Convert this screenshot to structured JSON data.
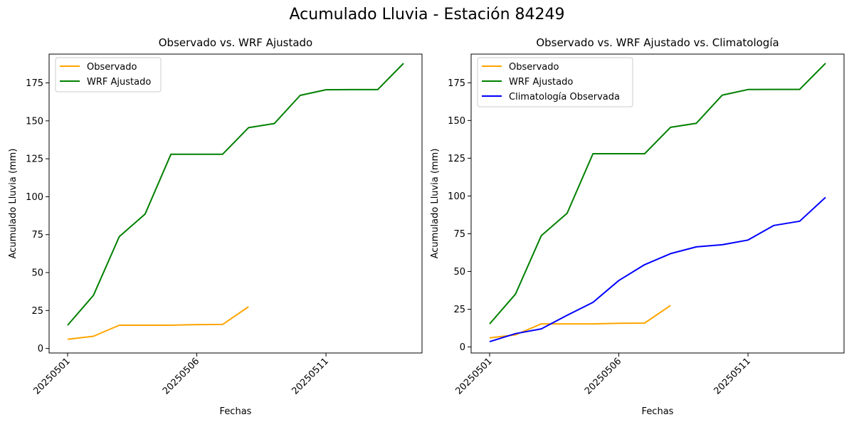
{
  "suptitle": "Acumulado Lluvia - Estación 84249",
  "chart_data": [
    {
      "type": "line",
      "title": "Observado vs. WRF Ajustado",
      "xlabel": "Fechas",
      "ylabel": "Acumulado Lluvia (mm)",
      "x": [
        "20250501",
        "20250502",
        "20250503",
        "20250504",
        "20250505",
        "20250506",
        "20250507",
        "20250508",
        "20250509",
        "20250510",
        "20250511",
        "20250512",
        "20250513",
        "20250514"
      ],
      "xticks": [
        "20250501",
        "20250506",
        "20250511"
      ],
      "yticks": [
        0,
        25,
        50,
        75,
        100,
        125,
        150,
        175
      ],
      "ylim": [
        -3,
        194
      ],
      "legend": "upper-left",
      "grid": false,
      "series": [
        {
          "name": "Observado",
          "color": "#ffa500",
          "values": [
            6,
            8,
            15.3,
            15.3,
            15.3,
            15.7,
            15.8,
            27.5,
            null,
            null,
            null,
            null,
            null,
            null
          ]
        },
        {
          "name": "WRF Ajustado",
          "color": "#008000",
          "values": [
            15.3,
            35,
            73.7,
            88.6,
            128,
            128,
            128,
            145.5,
            148.2,
            166.8,
            170.5,
            170.6,
            170.6,
            187.9
          ]
        }
      ]
    },
    {
      "type": "line",
      "title": "Observado vs. WRF Ajustado vs. Climatología",
      "xlabel": "Fechas",
      "ylabel": "Acumulado Lluvia (mm)",
      "x": [
        "20250501",
        "20250502",
        "20250503",
        "20250504",
        "20250505",
        "20250506",
        "20250507",
        "20250508",
        "20250509",
        "20250510",
        "20250511",
        "20250512",
        "20250513",
        "20250514"
      ],
      "xticks": [
        "20250501",
        "20250506",
        "20250511"
      ],
      "yticks": [
        0,
        25,
        50,
        75,
        100,
        125,
        150,
        175
      ],
      "ylim": [
        -4,
        194
      ],
      "legend": "upper-left",
      "grid": false,
      "series": [
        {
          "name": "Observado",
          "color": "#ffa500",
          "values": [
            6,
            8,
            15.3,
            15.3,
            15.3,
            15.7,
            15.8,
            27.5,
            null,
            null,
            null,
            null,
            null,
            null
          ]
        },
        {
          "name": "WRF Ajustado",
          "color": "#008000",
          "values": [
            15.3,
            35,
            73.7,
            88.6,
            128,
            128,
            128,
            145.5,
            148.2,
            166.8,
            170.5,
            170.6,
            170.6,
            187.9
          ]
        },
        {
          "name": "Climatología Observada",
          "color": "#0000ff",
          "values": [
            3.5,
            8.8,
            12,
            21,
            29.5,
            44,
            54.5,
            61.8,
            66.3,
            67.7,
            70.8,
            80.5,
            83.3,
            99.1
          ]
        }
      ]
    }
  ]
}
